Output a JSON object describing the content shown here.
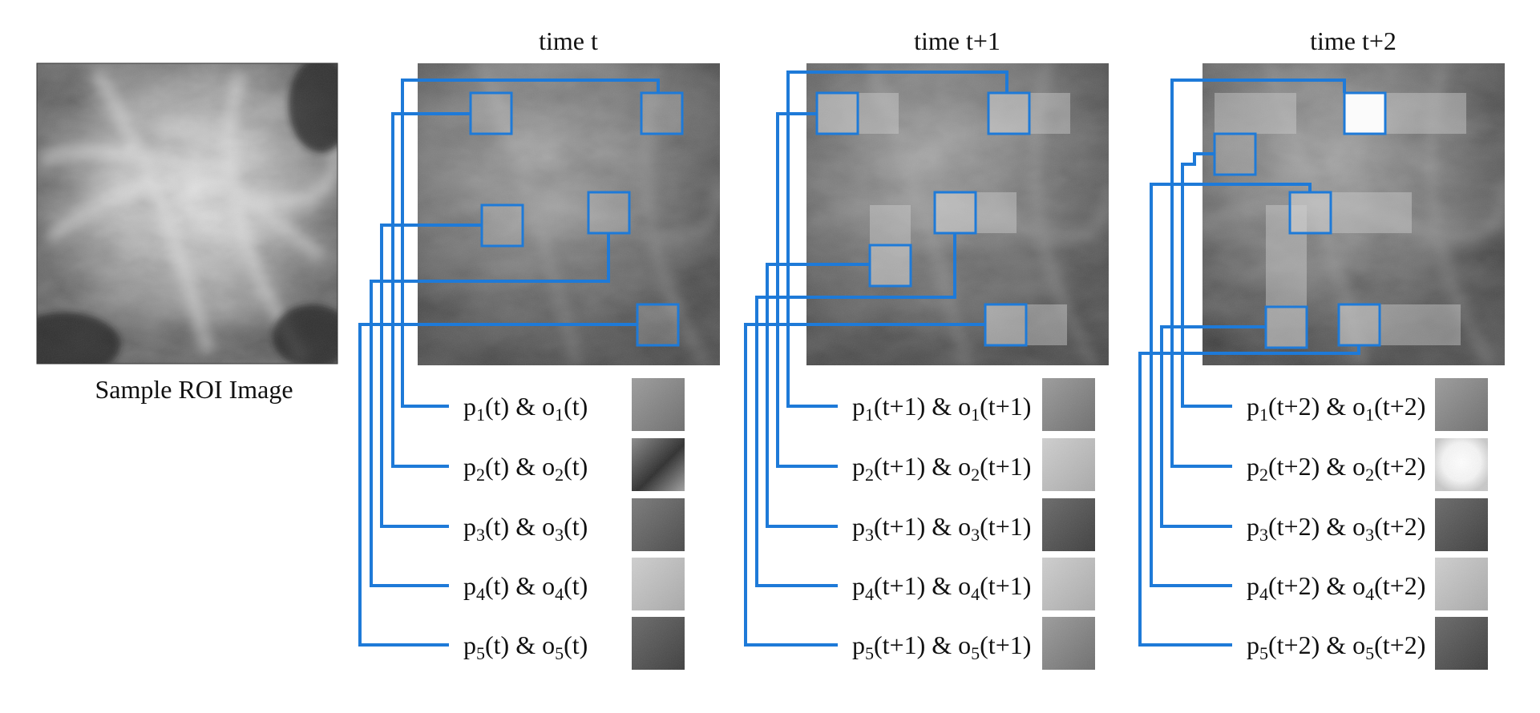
{
  "sample": {
    "caption": "Sample ROI Image"
  },
  "frames": [
    {
      "title": "time t",
      "rows": [
        {
          "p": "p",
          "i": "1",
          "open": "(t) & o",
          "close": "(t)"
        },
        {
          "p": "p",
          "i": "2",
          "open": "(t) & o",
          "close": "(t)"
        },
        {
          "p": "p",
          "i": "3",
          "open": "(t) & o",
          "close": "(t)"
        },
        {
          "p": "p",
          "i": "4",
          "open": "(t) & o",
          "close": "(t)"
        },
        {
          "p": "p",
          "i": "5",
          "open": "(t) & o",
          "close": "(t)"
        }
      ]
    },
    {
      "title": "time t+1",
      "rows": [
        {
          "p": "p",
          "i": "1",
          "open": "(t+1) & o",
          "close": "(t+1)"
        },
        {
          "p": "p",
          "i": "2",
          "open": "(t+1) & o",
          "close": "(t+1)"
        },
        {
          "p": "p",
          "i": "3",
          "open": "(t+1) & o",
          "close": "(t+1)"
        },
        {
          "p": "p",
          "i": "4",
          "open": "(t+1) & o",
          "close": "(t+1)"
        },
        {
          "p": "p",
          "i": "5",
          "open": "(t+1) & o",
          "close": "(t+1)"
        }
      ]
    },
    {
      "title": "time t+2",
      "rows": [
        {
          "p": "p",
          "i": "1",
          "open": "(t+2) & o",
          "close": "(t+2)"
        },
        {
          "p": "p",
          "i": "2",
          "open": "(t+2) & o",
          "close": "(t+2)"
        },
        {
          "p": "p",
          "i": "3",
          "open": "(t+2) & o",
          "close": "(t+2)"
        },
        {
          "p": "p",
          "i": "4",
          "open": "(t+2) & o",
          "close": "(t+2)"
        },
        {
          "p": "p",
          "i": "5",
          "open": "(t+2) & o",
          "close": "(t+2)"
        }
      ]
    }
  ],
  "colors": {
    "connector": "#1e7ad8",
    "background": "#ffffff"
  }
}
